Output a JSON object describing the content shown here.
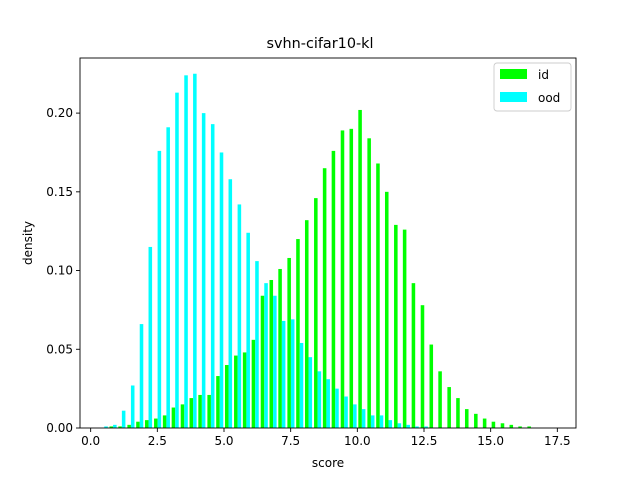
{
  "chart_data": {
    "type": "bar",
    "title": "svhn-cifar10-kl",
    "xlabel": "score",
    "ylabel": "density",
    "xlim": [
      -0.4,
      18.2
    ],
    "ylim": [
      0.0,
      0.235
    ],
    "xticks": [
      0.0,
      2.5,
      5.0,
      7.5,
      10.0,
      12.5,
      15.0,
      17.5
    ],
    "xtick_labels": [
      "0.0",
      "2.5",
      "5.0",
      "7.5",
      "10.0",
      "12.5",
      "15.0",
      "17.5"
    ],
    "yticks": [
      0.0,
      0.05,
      0.1,
      0.15,
      0.2
    ],
    "ytick_labels": [
      "0.00",
      "0.05",
      "0.10",
      "0.15",
      "0.20"
    ],
    "grid": false,
    "legend_position": "upper right",
    "bin_width": 0.333,
    "series": [
      {
        "name": "id",
        "color": "#00ff00",
        "x": [
          0.84,
          1.17,
          1.51,
          1.84,
          2.17,
          2.51,
          2.84,
          3.17,
          3.51,
          3.84,
          4.17,
          4.51,
          4.84,
          5.17,
          5.51,
          5.84,
          6.17,
          6.51,
          6.84,
          7.17,
          7.51,
          7.84,
          8.17,
          8.51,
          8.84,
          9.17,
          9.51,
          9.84,
          10.17,
          10.51,
          10.84,
          11.17,
          11.51,
          11.84,
          12.17,
          12.51,
          12.84,
          13.17,
          13.51,
          13.84,
          14.17,
          14.51,
          14.84,
          15.17,
          15.51,
          15.84,
          16.17,
          16.51
        ],
        "values": [
          0.001,
          0.001,
          0.002,
          0.004,
          0.005,
          0.006,
          0.008,
          0.013,
          0.015,
          0.019,
          0.021,
          0.021,
          0.033,
          0.04,
          0.046,
          0.048,
          0.056,
          0.084,
          0.094,
          0.101,
          0.108,
          0.12,
          0.132,
          0.146,
          0.165,
          0.176,
          0.189,
          0.19,
          0.202,
          0.184,
          0.168,
          0.15,
          0.129,
          0.126,
          0.092,
          0.078,
          0.053,
          0.036,
          0.026,
          0.019,
          0.012,
          0.009,
          0.006,
          0.004,
          0.003,
          0.002,
          0.001,
          0.001
        ]
      },
      {
        "name": "ood",
        "color": "#00ffff",
        "x": [
          0.51,
          0.84,
          1.17,
          1.51,
          1.84,
          2.17,
          2.51,
          2.84,
          3.17,
          3.51,
          3.84,
          4.17,
          4.51,
          4.84,
          5.17,
          5.51,
          5.84,
          6.17,
          6.51,
          6.84,
          7.17,
          7.51,
          7.84,
          8.17,
          8.51,
          8.84,
          9.17,
          9.51,
          9.84,
          10.17,
          10.51,
          10.84,
          11.17,
          11.51,
          11.84,
          12.17,
          12.51
        ],
        "values": [
          0.001,
          0.002,
          0.011,
          0.027,
          0.066,
          0.115,
          0.176,
          0.191,
          0.213,
          0.224,
          0.225,
          0.2,
          0.193,
          0.175,
          0.158,
          0.142,
          0.124,
          0.106,
          0.092,
          0.084,
          0.068,
          0.069,
          0.054,
          0.045,
          0.036,
          0.031,
          0.025,
          0.02,
          0.015,
          0.012,
          0.008,
          0.008,
          0.005,
          0.003,
          0.002,
          0.001,
          0.001
        ]
      }
    ]
  }
}
